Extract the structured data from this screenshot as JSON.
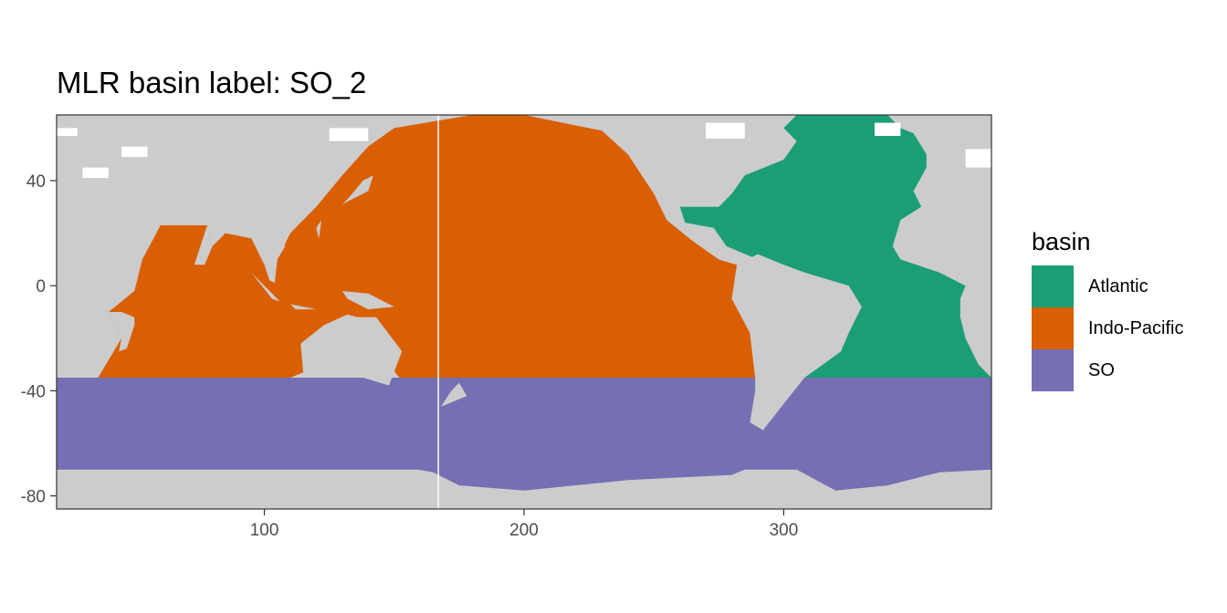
{
  "chart_data": {
    "type": "heatmap",
    "title": "MLR basin label: SO_2",
    "xlabel": "",
    "ylabel": "",
    "xlim": [
      20,
      380
    ],
    "ylim": [
      -85,
      65
    ],
    "x_ticks": [
      100,
      200,
      300
    ],
    "y_ticks": [
      40,
      0,
      -40,
      -80
    ],
    "grid": false,
    "legend": {
      "title": "basin",
      "position": "right",
      "entries": [
        {
          "label": "Atlantic",
          "color": "#1b9e77"
        },
        {
          "label": "Indo-Pacific",
          "color": "#d95f02"
        },
        {
          "label": "SO",
          "color": "#7570b3"
        }
      ]
    },
    "land_color": "#cccccc",
    "southern_ocean_boundary_lat": -35,
    "antarctic_coast_lat": -70,
    "atlantic_lon_range": [
      290,
      380
    ],
    "indo_pacific_lon_range": [
      20,
      290
    ]
  }
}
